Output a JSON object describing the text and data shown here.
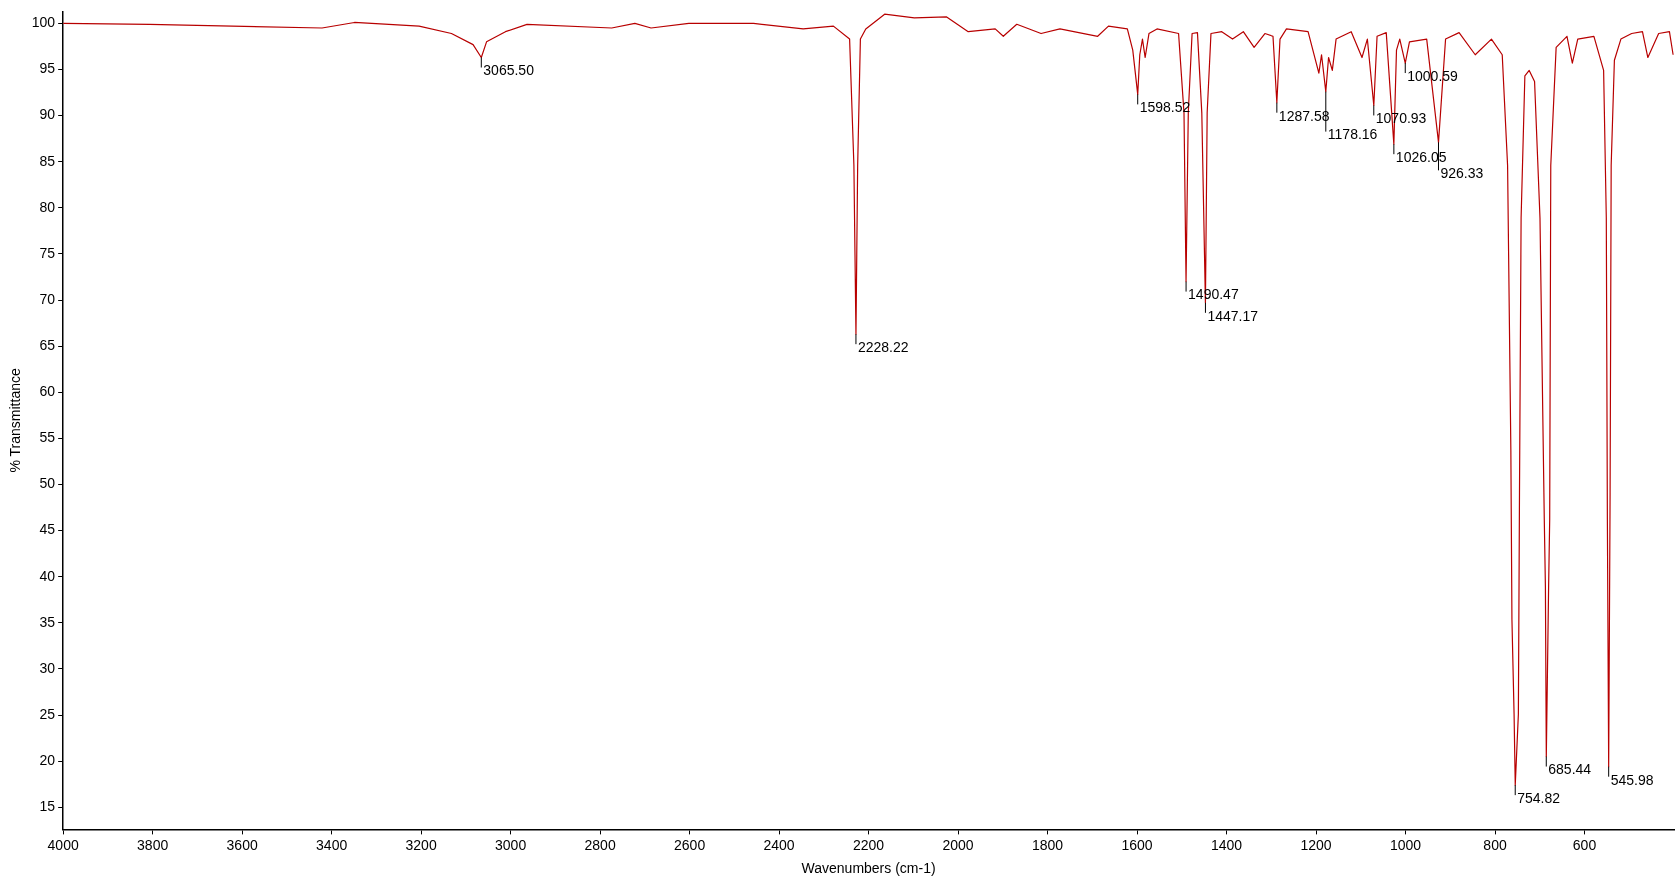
{
  "chart_data": {
    "type": "line",
    "xlabel": "Wavenumbers (cm-1)",
    "ylabel": "% Transmittance",
    "xlim": [
      4000,
      400
    ],
    "xticks": [
      4000,
      3800,
      3600,
      3400,
      3200,
      3000,
      2800,
      2600,
      2400,
      2200,
      2000,
      1800,
      1600,
      1400,
      1200,
      1000,
      800,
      600
    ],
    "ylim": [
      12.6,
      101.3
    ],
    "yticks": [
      15,
      20,
      25,
      30,
      35,
      40,
      45,
      50,
      55,
      60,
      65,
      70,
      75,
      80,
      85,
      90,
      95,
      100
    ],
    "grid": false,
    "legend": false,
    "marker": "none",
    "line_style": "solid",
    "series": [
      {
        "color": "#b80000",
        "x": [
          4000,
          3807.2,
          3421.4,
          3349.1,
          3204.5,
          3132.2,
          3083.9,
          3065.5,
          3053.8,
          3011.6,
          2963.4,
          2774.1,
          2722.3,
          2686.1,
          2601.8,
          2457.1,
          2346.2,
          2278.6,
          2242.4,
          2232.8,
          2228.2,
          2224.4,
          2218.3,
          2206.3,
          2164.1,
          2097.8,
          2025.5,
          1977.3,
          1917,
          1898.9,
          1868.8,
          1814.5,
          1772.3,
          1688,
          1663.9,
          1621.7,
          1609.6,
          1598.5,
          1593.9,
          1587.9,
          1581.9,
          1573.4,
          1555.4,
          1507.2,
          1495.1,
          1490.5,
          1485.5,
          1477,
          1465,
          1455.3,
          1447.2,
          1443.3,
          1434.8,
          1410.7,
          1386.6,
          1362.5,
          1338.4,
          1314.3,
          1296.2,
          1287.6,
          1280.5,
          1266.1,
          1217.8,
          1193.7,
          1187.7,
          1178.2,
          1172,
          1163.6,
          1155.2,
          1121.4,
          1097.3,
          1085.3,
          1070.9,
          1063.6,
          1043.1,
          1026.1,
          1020.2,
          1012.9,
          1000.6,
          991.2,
          952.7,
          926.3,
          910.5,
          880.3,
          844.2,
          808,
          783.9,
          771.9,
          764.6,
          762.2,
          757.4,
          754.8,
          747.8,
          745.3,
          741.7,
          733.3,
          723.6,
          711.6,
          699.5,
          689.9,
          687.4,
          685.4,
          680.2,
          677.8,
          675.4,
          663.4,
          639.2,
          627.2,
          615.1,
          579,
          557.3,
          551.3,
          548.9,
          546,
          542.8,
          540.4,
          533.2,
          518.7,
          494.6,
          470.5,
          458.4,
          434.3,
          410.2,
          402
        ],
        "values": [
          100,
          99.9,
          99.5,
          100.1,
          99.7,
          98.9,
          97.7,
          96.3,
          98,
          99.1,
          99.9,
          99.5,
          100,
          99.5,
          100,
          100,
          99.4,
          99.7,
          98.3,
          84.6,
          66.3,
          84.6,
          98.3,
          99.4,
          101,
          100.6,
          100.7,
          99.1,
          99.4,
          98.6,
          99.9,
          98.9,
          99.4,
          98.6,
          99.7,
          99.4,
          97.1,
          92.3,
          96.6,
          98.3,
          96.3,
          98.9,
          99.4,
          98.9,
          90.3,
          72,
          90.3,
          98.9,
          99,
          90.3,
          69.7,
          90.3,
          98.9,
          99.1,
          98.3,
          99.1,
          97.4,
          98.9,
          98.6,
          91.4,
          98.3,
          99.4,
          99.1,
          94.6,
          96.6,
          92.6,
          96.3,
          94.9,
          98.3,
          99.1,
          96.3,
          98.3,
          91.1,
          98.6,
          99,
          86.9,
          97.1,
          98.3,
          95.7,
          98,
          98.3,
          87.1,
          98.3,
          99,
          96.6,
          98.3,
          96.6,
          84.6,
          53.7,
          35.4,
          25.1,
          17.4,
          25.1,
          49.1,
          78.9,
          94.3,
          94.9,
          93.7,
          78.9,
          46.2,
          39,
          20.5,
          39,
          46.2,
          84.6,
          97.4,
          98.6,
          95.7,
          98.3,
          98.6,
          94.9,
          78.9,
          46.2,
          19.4,
          49.1,
          84.6,
          96,
          98.3,
          98.9,
          99.1,
          96.3,
          98.9,
          99.1,
          96.6
        ]
      }
    ],
    "annotations": [
      {
        "text": "3065.50",
        "x": 3065.5,
        "y": 96.3
      },
      {
        "text": "2228.22",
        "x": 2228.22,
        "y": 66.3
      },
      {
        "text": "1598.52",
        "x": 1598.52,
        "y": 92.3
      },
      {
        "text": "1490.47",
        "x": 1490.47,
        "y": 72
      },
      {
        "text": "1447.17",
        "x": 1447.17,
        "y": 69.7
      },
      {
        "text": "1287.58",
        "x": 1287.58,
        "y": 91.4
      },
      {
        "text": "1178.16",
        "x": 1178.16,
        "y": 92.6
      },
      {
        "text": "1070.93",
        "x": 1070.93,
        "y": 91.1
      },
      {
        "text": "1026.05",
        "x": 1026.05,
        "y": 86.9
      },
      {
        "text": "1000.59",
        "x": 1000.59,
        "y": 95.7
      },
      {
        "text": "926.33",
        "x": 926.33,
        "y": 87.1
      },
      {
        "text": "754.82",
        "x": 754.82,
        "y": 17.4
      },
      {
        "text": "685.44",
        "x": 685.44,
        "y": 20.5
      },
      {
        "text": "545.98",
        "x": 545.98,
        "y": 19.4
      }
    ]
  }
}
